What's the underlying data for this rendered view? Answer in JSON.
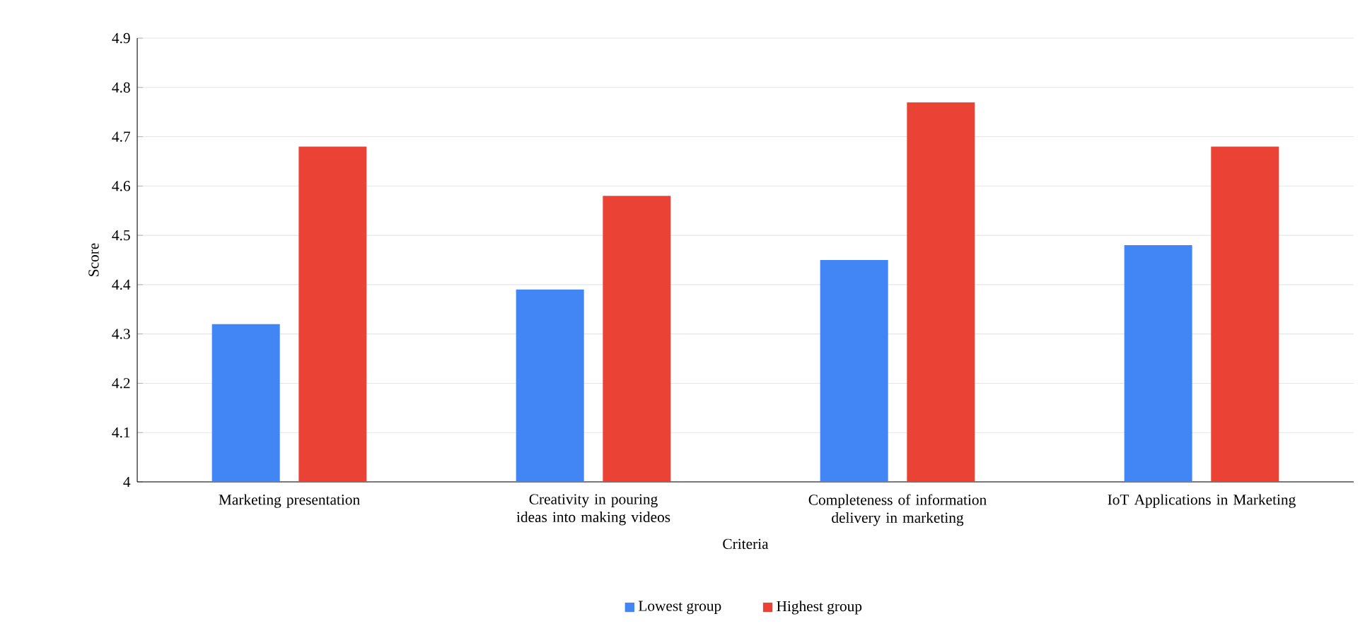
{
  "chart_data": {
    "type": "bar",
    "xlabel": "Criteria",
    "ylabel": "Score",
    "categories": [
      "Marketing presentation",
      "Creativity in pouring ideas into making videos",
      "Completeness of information delivery in marketing",
      "IoT Applications in Marketing"
    ],
    "series": [
      {
        "name": "Lowest group",
        "color": "#4285f4",
        "values": [
          4.32,
          4.39,
          4.45,
          4.48
        ]
      },
      {
        "name": "Highest group",
        "color": "#ea4335",
        "values": [
          4.68,
          4.58,
          4.77,
          4.68
        ]
      }
    ],
    "ylim": [
      4,
      4.9
    ],
    "yticks": [
      4,
      4.1,
      4.2,
      4.3,
      4.4,
      4.5,
      4.6,
      4.7,
      4.8,
      4.9
    ],
    "grid": "y",
    "legend": "bottom"
  }
}
